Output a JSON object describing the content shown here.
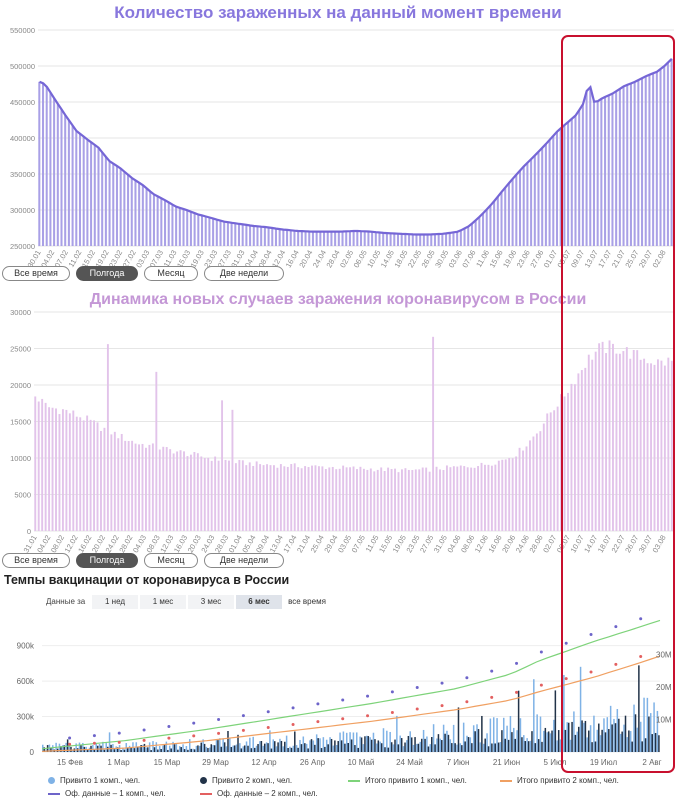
{
  "chart1": {
    "title": "Количество зараженных на данный момент времени",
    "ranges": [
      "Все время",
      "Полгода",
      "Месяц",
      "Две недели"
    ],
    "active_range": 1,
    "chart_data": {
      "type": "bar",
      "ylim": [
        250000,
        550000
      ],
      "yticks": [
        "550000",
        "500000",
        "450000",
        "400000",
        "350000",
        "300000",
        "250000"
      ],
      "xticks": [
        "30.01",
        "04.02",
        "07.02",
        "11.02",
        "15.02",
        "19.02",
        "23.02",
        "27.02",
        "03.03",
        "07.03",
        "11.03",
        "15.03",
        "19.03",
        "23.03",
        "27.03",
        "31.03",
        "04.04",
        "08.04",
        "12.04",
        "16.04",
        "20.04",
        "24.04",
        "28.04",
        "02.05",
        "06.05",
        "10.05",
        "14.05",
        "18.05",
        "22.05",
        "26.05",
        "30.05",
        "03.06",
        "07.06",
        "11.06",
        "15.06",
        "19.06",
        "23.06",
        "27.06",
        "01.07",
        "05.07",
        "09.07",
        "13.07",
        "17.07",
        "21.07",
        "25.07",
        "29.07",
        "02.08"
      ],
      "keypoints": [
        [
          0,
          478000
        ],
        [
          3,
          475000
        ],
        [
          8,
          455000
        ],
        [
          14,
          432000
        ],
        [
          20,
          410000
        ],
        [
          26,
          398000
        ],
        [
          32,
          387000
        ],
        [
          38,
          368000
        ],
        [
          44,
          358000
        ],
        [
          50,
          345000
        ],
        [
          56,
          335000
        ],
        [
          62,
          322000
        ],
        [
          68,
          314000
        ],
        [
          74,
          305000
        ],
        [
          80,
          300000
        ],
        [
          86,
          294000
        ],
        [
          92,
          290000
        ],
        [
          100,
          284000
        ],
        [
          108,
          281000
        ],
        [
          116,
          278000
        ],
        [
          124,
          276000
        ],
        [
          132,
          273000
        ],
        [
          140,
          271000
        ],
        [
          148,
          270000
        ],
        [
          156,
          270000
        ],
        [
          164,
          270000
        ],
        [
          172,
          271000
        ],
        [
          180,
          270000
        ],
        [
          188,
          268000
        ],
        [
          196,
          267000
        ],
        [
          204,
          266000
        ],
        [
          212,
          266000
        ],
        [
          220,
          267000
        ],
        [
          228,
          270000
        ],
        [
          234,
          278000
        ],
        [
          240,
          292000
        ],
        [
          246,
          308000
        ],
        [
          252,
          327000
        ],
        [
          258,
          345000
        ],
        [
          264,
          362000
        ],
        [
          270,
          377000
        ],
        [
          276,
          393000
        ],
        [
          282,
          410000
        ],
        [
          288,
          423000
        ],
        [
          292,
          432000
        ],
        [
          296,
          448000
        ],
        [
          299,
          478000
        ],
        [
          302,
          448000
        ],
        [
          306,
          455000
        ],
        [
          312,
          462000
        ],
        [
          318,
          472000
        ],
        [
          324,
          478000
        ],
        [
          330,
          486000
        ],
        [
          336,
          492000
        ],
        [
          340,
          500000
        ],
        [
          344,
          510000
        ]
      ],
      "bars": 172
    }
  },
  "chart2": {
    "title": "Динамика новых случаев заражения коронавирусом в России",
    "ranges": [
      "Все время",
      "Полгода",
      "Месяц",
      "Две недели"
    ],
    "active_range": 1,
    "chart_data": {
      "type": "bar",
      "ylim": [
        0,
        30000
      ],
      "yticks": [
        "30000",
        "25000",
        "20000",
        "15000",
        "10000",
        "5000",
        "0"
      ],
      "xticks": [
        "31.01",
        "04.02",
        "08.02",
        "12.02",
        "16.02",
        "20.02",
        "24.02",
        "28.02",
        "04.03",
        "08.03",
        "12.03",
        "16.03",
        "20.03",
        "24.03",
        "28.03",
        "01.04",
        "05.04",
        "09.04",
        "13.04",
        "17.04",
        "21.04",
        "25.04",
        "29.04",
        "03.05",
        "07.05",
        "11.05",
        "15.05",
        "19.05",
        "23.05",
        "27.05",
        "31.05",
        "04.06",
        "08.06",
        "12.06",
        "16.06",
        "20.06",
        "24.06",
        "28.06",
        "02.07",
        "06.07",
        "10.07",
        "14.07",
        "18.07",
        "22.07",
        "26.07",
        "30.07",
        "03.08"
      ],
      "keypoints": [
        [
          0,
          18500
        ],
        [
          4,
          17000
        ],
        [
          10,
          16500
        ],
        [
          16,
          15500
        ],
        [
          22,
          14200
        ],
        [
          28,
          13000
        ],
        [
          34,
          12000
        ],
        [
          40,
          11500
        ],
        [
          46,
          11000
        ],
        [
          52,
          10500
        ],
        [
          58,
          10000
        ],
        [
          64,
          9600
        ],
        [
          70,
          9300
        ],
        [
          76,
          9100
        ],
        [
          82,
          9000
        ],
        [
          88,
          8900
        ],
        [
          94,
          8800
        ],
        [
          100,
          8700
        ],
        [
          106,
          8600
        ],
        [
          112,
          8500
        ],
        [
          118,
          8400
        ],
        [
          124,
          8300
        ],
        [
          130,
          8400
        ],
        [
          136,
          8600
        ],
        [
          142,
          8800
        ],
        [
          148,
          9000
        ],
        [
          152,
          9300
        ],
        [
          156,
          9800
        ],
        [
          160,
          10500
        ],
        [
          164,
          12000
        ],
        [
          168,
          14000
        ],
        [
          172,
          16500
        ],
        [
          176,
          18500
        ],
        [
          180,
          21000
        ],
        [
          184,
          23500
        ],
        [
          188,
          25000
        ],
        [
          192,
          25200
        ],
        [
          196,
          24800
        ],
        [
          200,
          24000
        ],
        [
          204,
          23500
        ],
        [
          208,
          23000
        ],
        [
          212,
          23300
        ]
      ],
      "spikes": [
        [
          24,
          25600
        ],
        [
          40,
          21800
        ],
        [
          62,
          17900
        ],
        [
          66,
          16600
        ],
        [
          132,
          26600
        ]
      ],
      "bars": 185
    }
  },
  "chart3": {
    "title": "Темпы вакцинации от коронавируса в России",
    "period_label": "Данные за",
    "periods": [
      "1 нед",
      "1 мес",
      "3 мес",
      "6 мес",
      "все время"
    ],
    "active_period": 3,
    "chart_data": {
      "type": "bar",
      "ylim_left": [
        0,
        1100000
      ],
      "ylim_right": [
        0,
        40000000
      ],
      "yticks_left": [
        "900k",
        "600k",
        "300k",
        "0"
      ],
      "yticks_right": [
        "30M",
        "20M",
        "10M"
      ],
      "xticks": [
        "15 Фев",
        "1 Мар",
        "15 Мар",
        "29 Мар",
        "12 Апр",
        "26 Апр",
        "10 Май",
        "24 Май",
        "7 Июн",
        "21 Июн",
        "5 Июл",
        "19 Июл",
        "2 Авг"
      ],
      "series": [
        {
          "name": "Привито 1 комп., чел."
        },
        {
          "name": "Привито 2 комп., чел."
        },
        {
          "name": "Итого привито 1 комп., чел."
        },
        {
          "name": "Итого привито 2 комп., чел."
        },
        {
          "name": "Оф. данные – 1 комп., чел."
        },
        {
          "name": "Оф. данные – 2 комп., чел."
        }
      ],
      "cumulative1": [
        [
          0,
          1000000
        ],
        [
          30,
          3500000
        ],
        [
          60,
          7000000
        ],
        [
          90,
          11000000
        ],
        [
          120,
          15000000
        ],
        [
          150,
          19500000
        ],
        [
          170,
          24000000
        ],
        [
          180,
          28000000
        ],
        [
          200,
          34000000
        ],
        [
          215,
          38000000
        ],
        [
          224,
          40500000
        ]
      ],
      "cumulative2": [
        [
          0,
          200000
        ],
        [
          30,
          1200000
        ],
        [
          60,
          3500000
        ],
        [
          90,
          6500000
        ],
        [
          120,
          9500000
        ],
        [
          150,
          13000000
        ],
        [
          170,
          16000000
        ],
        [
          180,
          18500000
        ],
        [
          200,
          23000000
        ],
        [
          215,
          27000000
        ],
        [
          224,
          29500000
        ]
      ],
      "bars": 185
    }
  },
  "colors": {
    "c1": "#a9a0e6",
    "c1line": "#7566d6",
    "c2": "#e2c3ea",
    "v1": "#7fb2e6",
    "v2": "#223349",
    "tot1": "#7ed37a",
    "tot2": "#f0a062",
    "off1": "#6d64c9",
    "off2": "#e36060",
    "highlight": "#c8102e"
  }
}
